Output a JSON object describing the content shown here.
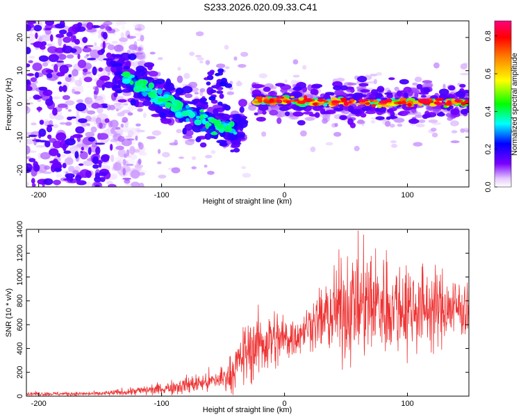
{
  "title": "S233.2026.020.09.33.C41",
  "chart_data": [
    {
      "type": "heatmap",
      "name": "spectrogram",
      "xlabel": "Height of straight line (km)",
      "ylabel": "Frequency (Hz)",
      "xlim": [
        -210,
        150
      ],
      "ylim": [
        -25,
        25
      ],
      "xticks": [
        -200,
        -100,
        0,
        100
      ],
      "yticks": [
        -20,
        -10,
        0,
        10,
        20
      ],
      "colorbar": {
        "label": "Normalized spectral amplitude",
        "range": [
          0.0,
          0.88
        ],
        "ticks": [
          0.0,
          0.2,
          0.4,
          0.6,
          0.8
        ],
        "tick_labels": [
          "0.0",
          "0.2",
          "0.4",
          "0.6",
          "0.8"
        ]
      },
      "features": {
        "noise_region_x": [
          -210,
          -140
        ],
        "descending_track": [
          [
            -140,
            10
          ],
          [
            -120,
            6
          ],
          [
            -100,
            2
          ],
          [
            -80,
            -2
          ],
          [
            -60,
            -6
          ],
          [
            -45,
            -7
          ]
        ],
        "steady_track": [
          [
            -25,
            1
          ],
          [
            0,
            1
          ],
          [
            50,
            0.5
          ],
          [
            100,
            0.5
          ],
          [
            150,
            0.5
          ]
        ],
        "steady_track_peak_amplitude": 0.85
      }
    },
    {
      "type": "line",
      "name": "snr",
      "xlabel": "Height of straight line (km)",
      "ylabel": "SNR (10 * v/v)",
      "xlim": [
        -210,
        150
      ],
      "ylim": [
        0,
        1400
      ],
      "xticks": [
        -200,
        -100,
        0,
        100
      ],
      "yticks": [
        0,
        200,
        400,
        600,
        800,
        1000,
        1200,
        1400
      ],
      "color": "#ee3333",
      "series": [
        {
          "name": "SNR",
          "envelope_x": [
            -210,
            -150,
            -130,
            -100,
            -80,
            -60,
            -45,
            -35,
            -25,
            -10,
            0,
            10,
            20,
            30,
            40,
            55,
            70,
            85,
            100,
            120,
            140,
            150
          ],
          "envelope_mean": [
            20,
            20,
            35,
            60,
            95,
            120,
            170,
            320,
            420,
            470,
            480,
            510,
            600,
            640,
            700,
            760,
            780,
            760,
            750,
            740,
            740,
            750
          ],
          "envelope_spread": [
            10,
            12,
            20,
            35,
            50,
            60,
            90,
            150,
            200,
            180,
            140,
            120,
            110,
            180,
            260,
            300,
            320,
            280,
            260,
            220,
            180,
            170
          ]
        }
      ]
    }
  ]
}
